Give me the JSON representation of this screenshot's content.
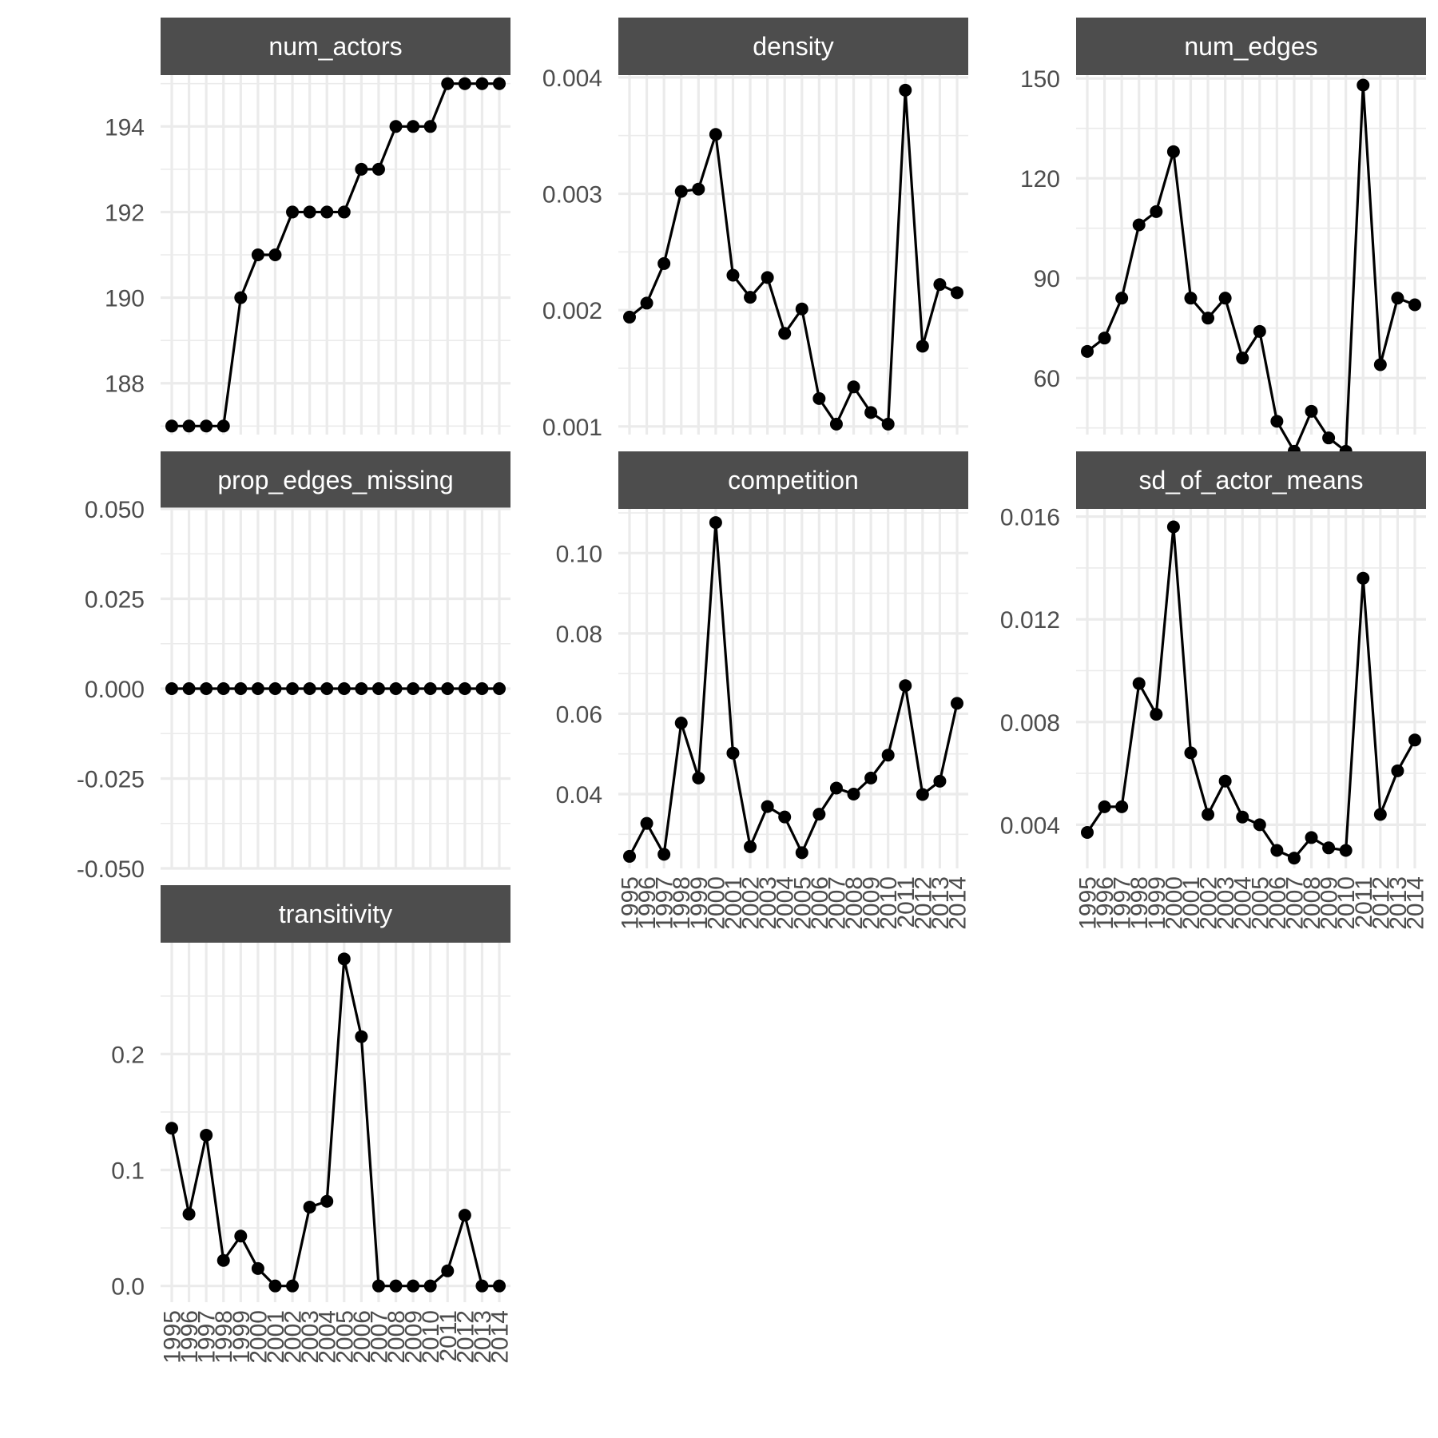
{
  "chart_data": {
    "type": "line",
    "facet_layout": "wrap, 3 columns",
    "x": [
      1995,
      1996,
      1997,
      1998,
      1999,
      2000,
      2001,
      2002,
      2003,
      2004,
      2005,
      2006,
      2007,
      2008,
      2009,
      2010,
      2011,
      2012,
      2013,
      2014
    ],
    "x_tick_labels": [
      "1995",
      "1996",
      "1997",
      "1998",
      "1999",
      "2000",
      "2001",
      "2002",
      "2003",
      "2004",
      "2005",
      "2006",
      "2007",
      "2008",
      "2009",
      "2010",
      "2011",
      "2012",
      "2013",
      "2014"
    ],
    "grid": true,
    "panels": [
      {
        "title": "num_actors",
        "ylim": [
          186.8,
          195.2
        ],
        "y_ticks": [
          188,
          190,
          192,
          194
        ],
        "y_tick_labels": [
          "188",
          "190",
          "192",
          "194"
        ],
        "values": [
          187,
          187,
          187,
          187,
          190,
          191,
          191,
          192,
          192,
          192,
          192,
          193,
          193,
          194,
          194,
          194,
          195,
          195,
          195,
          195
        ]
      },
      {
        "title": "density",
        "ylim": [
          0.00093,
          0.00402
        ],
        "y_ticks": [
          0.001,
          0.002,
          0.003,
          0.004
        ],
        "y_tick_labels": [
          "0.001",
          "0.002",
          "0.003",
          "0.004"
        ],
        "values": [
          0.00194,
          0.00206,
          0.0024,
          0.00302,
          0.00304,
          0.00351,
          0.0023,
          0.00211,
          0.00228,
          0.0018,
          0.00201,
          0.00124,
          0.00102,
          0.00134,
          0.00112,
          0.00102,
          0.00389,
          0.00169,
          0.00222,
          0.00215
        ]
      },
      {
        "title": "num_edges",
        "ylim": [
          43,
          151
        ],
        "y_ticks": [
          60,
          90,
          120,
          150
        ],
        "y_tick_labels": [
          "60",
          "90",
          "120",
          "150"
        ],
        "values": [
          68,
          72,
          84,
          106,
          110,
          128,
          84,
          78,
          84,
          66,
          74,
          47,
          38,
          50,
          42,
          38,
          148,
          64,
          84,
          82
        ]
      },
      {
        "title": "prop_edges_missing",
        "ylim": [
          -0.05,
          0.05
        ],
        "y_ticks": [
          -0.05,
          -0.025,
          0,
          0.025,
          0.05
        ],
        "y_tick_labels": [
          "-0.050",
          "-0.025",
          "0.000",
          "0.025",
          "0.050"
        ],
        "values": [
          0,
          0,
          0,
          0,
          0,
          0,
          0,
          0,
          0,
          0,
          0,
          0,
          0,
          0,
          0,
          0,
          0,
          0,
          0,
          0
        ]
      },
      {
        "title": "competition",
        "ylim": [
          0.0215,
          0.111
        ],
        "y_ticks": [
          0.04,
          0.06,
          0.08,
          0.1
        ],
        "y_tick_labels": [
          "0.04",
          "0.06",
          "0.08",
          "0.10"
        ],
        "values": [
          0.0245,
          0.0327,
          0.025,
          0.0577,
          0.044,
          0.1076,
          0.0502,
          0.0269,
          0.0369,
          0.0343,
          0.0254,
          0.035,
          0.0415,
          0.04,
          0.044,
          0.0497,
          0.067,
          0.0399,
          0.0432,
          0.0626
        ]
      },
      {
        "title": "sd_of_actor_means",
        "ylim": [
          0.0023,
          0.0163
        ],
        "y_ticks": [
          0.004,
          0.008,
          0.012,
          0.016
        ],
        "y_tick_labels": [
          "0.004",
          "0.008",
          "0.012",
          "0.016"
        ],
        "values": [
          0.0037,
          0.0047,
          0.0047,
          0.0095,
          0.0083,
          0.0156,
          0.0068,
          0.0044,
          0.0057,
          0.0043,
          0.004,
          0.003,
          0.0027,
          0.0035,
          0.0031,
          0.003,
          0.0136,
          0.0044,
          0.0061,
          0.0073
        ]
      },
      {
        "title": "transitivity",
        "ylim": [
          -0.014,
          0.296
        ],
        "y_ticks": [
          0.0,
          0.1,
          0.2
        ],
        "y_tick_labels": [
          "0.0",
          "0.1",
          "0.2"
        ],
        "values": [
          0.136,
          0.062,
          0.13,
          0.022,
          0.043,
          0.015,
          0.0,
          0.0,
          0.068,
          0.073,
          0.282,
          0.215,
          0.0,
          0.0,
          0.0,
          0.0,
          0.013,
          0.061,
          0.0,
          0.0
        ]
      }
    ]
  }
}
